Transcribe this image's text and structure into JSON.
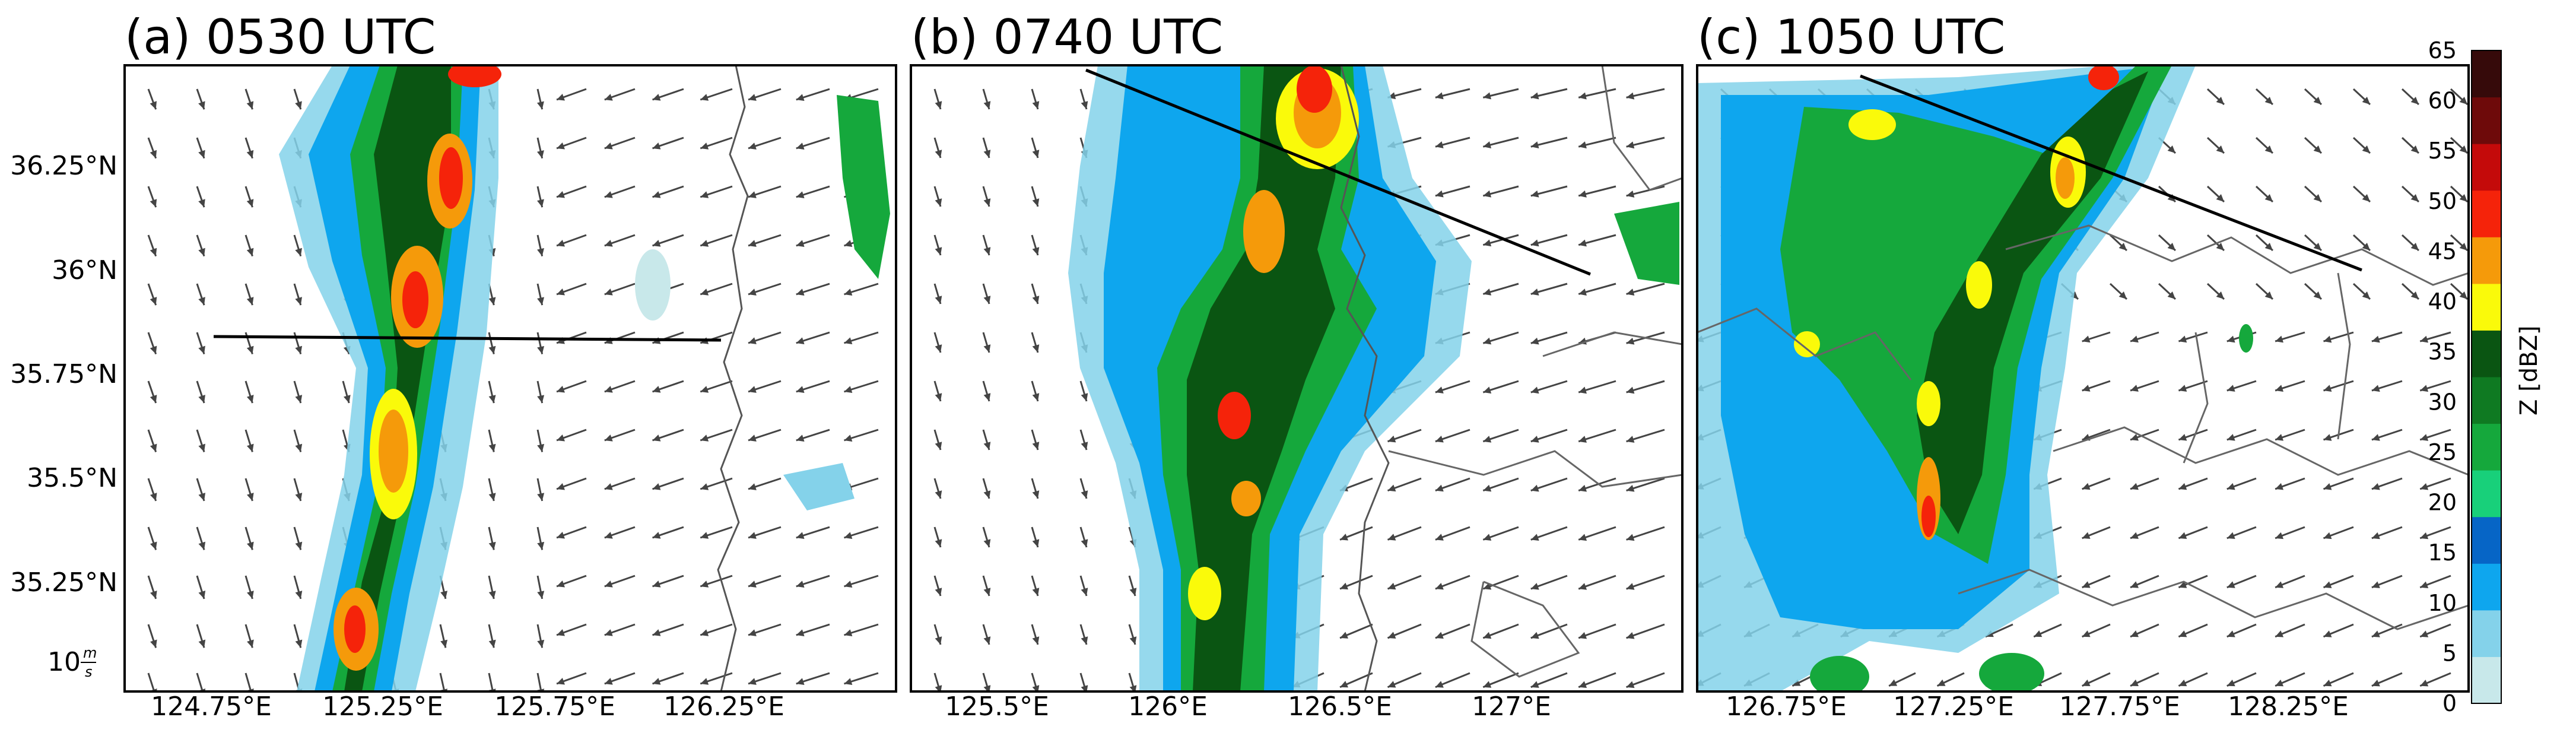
{
  "panels": [
    {
      "title": "(a) 0530 UTC",
      "x_ticks": [
        "124.75°E",
        "125.25°E",
        "125.75°E",
        "126.25°E"
      ],
      "y_ticks": [
        "36.25°N",
        "36°N",
        "35.75°N",
        "35.5°N",
        "35.25°N"
      ],
      "scale_label": "10",
      "scale_unit_num": "m",
      "scale_unit_den": "s"
    },
    {
      "title": "(b) 0740 UTC",
      "x_ticks": [
        "125.5°E",
        "126°E",
        "126.5°E",
        "127°E"
      ]
    },
    {
      "title": "(c) 1050 UTC",
      "x_ticks": [
        "126.75°E",
        "127.25°E",
        "127.75°E",
        "128.25°E"
      ]
    }
  ],
  "colorbar": {
    "label": "Z [dBZ]",
    "ticks": [
      "0",
      "5",
      "10",
      "15",
      "20",
      "25",
      "30",
      "35",
      "40",
      "45",
      "50",
      "55",
      "60",
      "65"
    ],
    "colors": [
      "#c8e8ea",
      "#84d2ea",
      "#0ea6ee",
      "#0665c6",
      "#18d07a",
      "#15a83c",
      "#0f7a22",
      "#0a5512",
      "#fafa0a",
      "#f59a0a",
      "#f5230a",
      "#c40a0a",
      "#6e0a0a",
      "#360a0a"
    ]
  },
  "map_colors": {
    "coast": "#555555",
    "border": "#666666",
    "section_line": "#000000",
    "vector": "#444444"
  }
}
